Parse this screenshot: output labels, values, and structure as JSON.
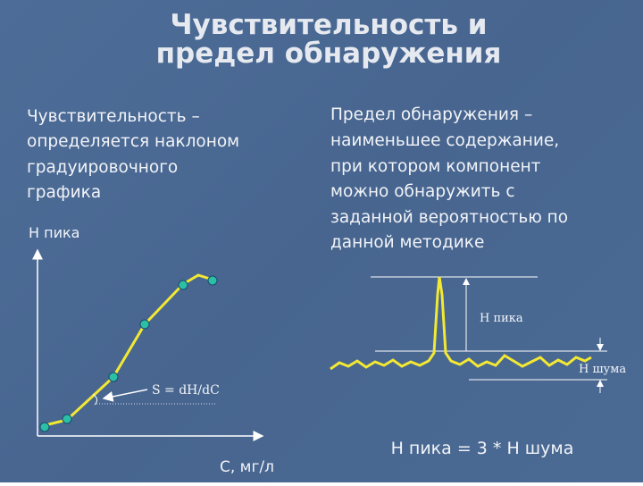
{
  "header": {
    "title": [
      "Чувствительность и",
      "предел обнаружения"
    ]
  },
  "left": {
    "lines": [
      "Чувствительность –",
      "определяется наклоном",
      "градуировочного",
      "графика"
    ],
    "y_axis_label": "Н пика",
    "x_axis_label": "С, мг/л",
    "slope_label": "S = dH/dC"
  },
  "right": {
    "lines": [
      "Предел обнаружения –",
      "наименьшее  содержание,",
      "при котором компонент",
      "можно обнаружить с",
      "заданной вероятностью по",
      "данной методике"
    ],
    "peak_label": "Н пика",
    "noise_label": "Н шума",
    "formula": "Н пика = 3 * Н шума"
  }
}
